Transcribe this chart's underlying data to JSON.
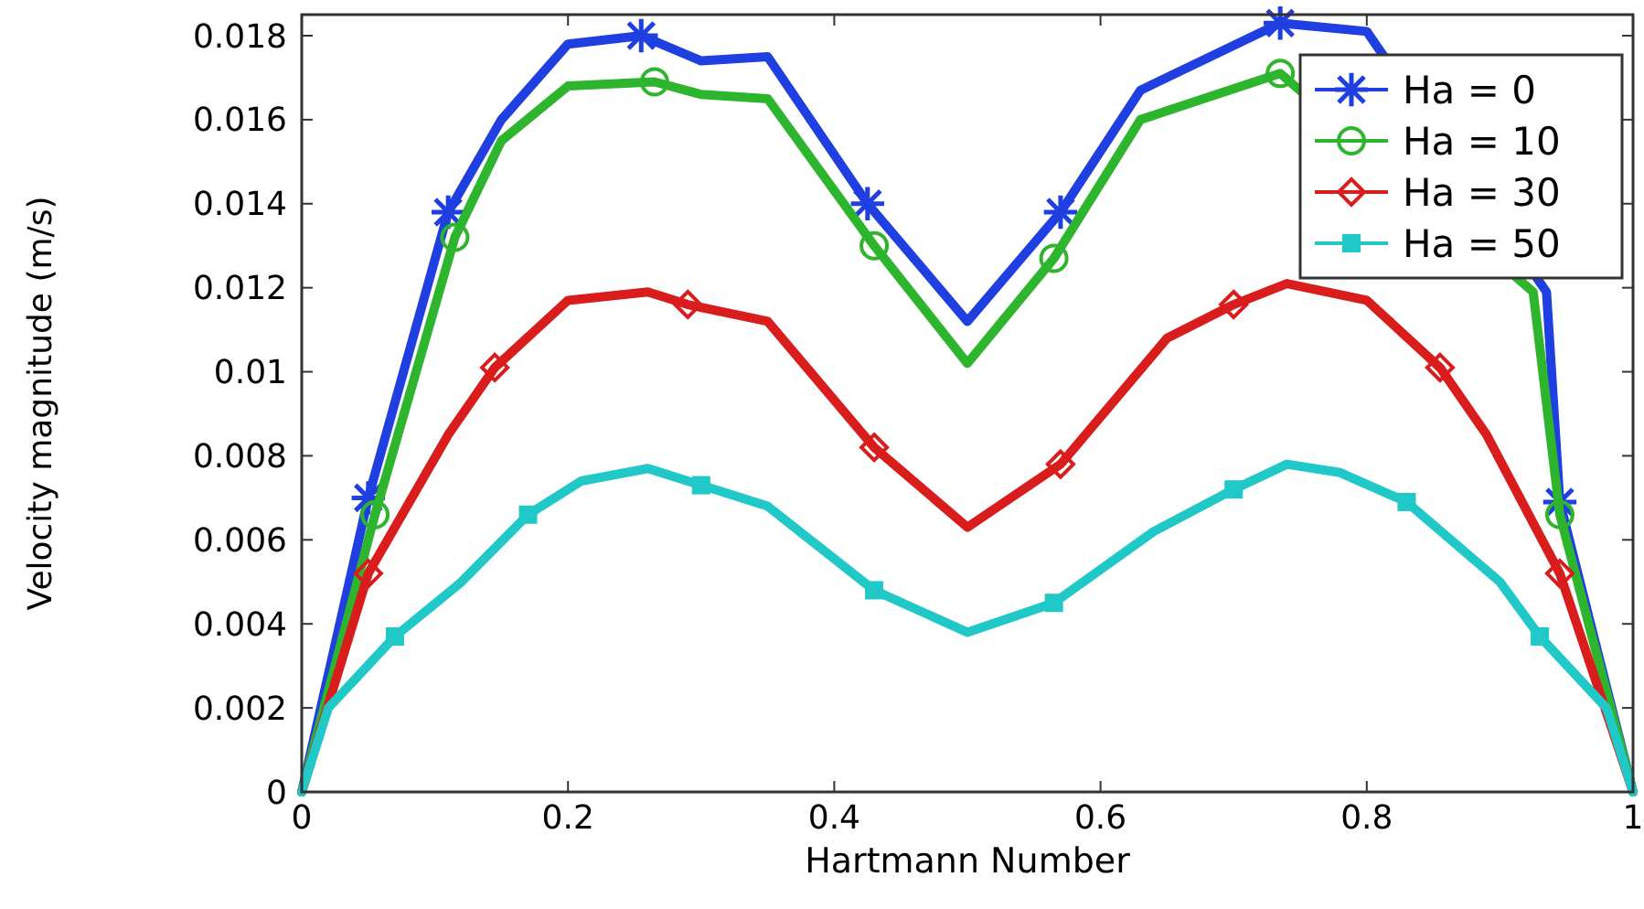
{
  "chart_data": {
    "type": "line",
    "xlabel": "Hartmann Number",
    "ylabel": "Velocity magnitude (m/s)",
    "xlim": [
      0,
      1
    ],
    "ylim": [
      0,
      0.0185
    ],
    "xticks": [
      0,
      0.2,
      0.4,
      0.6,
      0.8,
      1
    ],
    "yticks": [
      0,
      0.002,
      0.004,
      0.006,
      0.008,
      0.01,
      0.012,
      0.014,
      0.016,
      0.018
    ],
    "grid": false,
    "legend": "top right",
    "line_style": "solid",
    "series": [
      {
        "name": "Ha = 0",
        "color": "#1f3fe0",
        "marker": "none",
        "x": [
          0,
          0.05,
          0.11,
          0.15,
          0.2,
          0.255,
          0.3,
          0.35,
          0.425,
          0.5,
          0.57,
          0.63,
          0.735,
          0.8,
          0.935,
          0.945,
          1
        ],
        "values": [
          0,
          0.007,
          0.0138,
          0.016,
          0.0178,
          0.018,
          0.0174,
          0.0175,
          0.014,
          0.0112,
          0.0138,
          0.0167,
          0.0183,
          0.0181,
          0.0119,
          0.0069,
          0
        ]
      },
      {
        "type": "scatter",
        "color": "#1f3fe0",
        "marker": "cross",
        "x": [
          0.05,
          0.11,
          0.255,
          0.425,
          0.57,
          0.735,
          0.945
        ],
        "values": [
          0.007,
          0.0138,
          0.018,
          0.014,
          0.0138,
          0.0183,
          0.0069
        ]
      },
      {
        "name": "Ha = 10",
        "color": "#2db52d",
        "marker": "none",
        "x": [
          0,
          0.055,
          0.115,
          0.15,
          0.2,
          0.265,
          0.3,
          0.35,
          0.43,
          0.5,
          0.565,
          0.63,
          0.735,
          0.925,
          0.945,
          1
        ],
        "values": [
          0,
          0.0066,
          0.0132,
          0.0155,
          0.0168,
          0.0169,
          0.0166,
          0.0165,
          0.013,
          0.0102,
          0.0127,
          0.016,
          0.0171,
          0.0119,
          0.0066,
          0
        ]
      },
      {
        "type": "scatter",
        "color": "#2db52d",
        "marker": "circle",
        "x": [
          0.055,
          0.115,
          0.265,
          0.43,
          0.565,
          0.735,
          0.945
        ],
        "values": [
          0.0066,
          0.0132,
          0.0169,
          0.013,
          0.0127,
          0.0171,
          0.0066
        ]
      },
      {
        "name": "Ha = 30",
        "color": "#d91c1c",
        "marker": "none",
        "x": [
          0,
          0.05,
          0.11,
          0.145,
          0.2,
          0.26,
          0.29,
          0.35,
          0.43,
          0.5,
          0.57,
          0.65,
          0.7,
          0.74,
          0.8,
          0.855,
          0.89,
          0.945,
          1
        ],
        "values": [
          0,
          0.0052,
          0.0085,
          0.0101,
          0.0117,
          0.0119,
          0.0116,
          0.0112,
          0.0082,
          0.0063,
          0.0078,
          0.0108,
          0.0116,
          0.0121,
          0.0117,
          0.0101,
          0.0085,
          0.0052,
          0
        ]
      },
      {
        "type": "scatter",
        "color": "#d91c1c",
        "marker": "diamond",
        "x": [
          0.05,
          0.145,
          0.29,
          0.43,
          0.57,
          0.7,
          0.855,
          0.945
        ],
        "values": [
          0.0052,
          0.0101,
          0.0116,
          0.0082,
          0.0078,
          0.0116,
          0.0101,
          0.0052
        ]
      },
      {
        "name": "Ha = 50",
        "color": "#20c8c8",
        "marker": "none",
        "x": [
          0,
          0.02,
          0.07,
          0.12,
          0.17,
          0.21,
          0.26,
          0.3,
          0.35,
          0.43,
          0.5,
          0.565,
          0.64,
          0.7,
          0.74,
          0.78,
          0.83,
          0.9,
          0.93,
          0.98,
          1
        ],
        "values": [
          0,
          0.002,
          0.0037,
          0.005,
          0.0066,
          0.0074,
          0.0077,
          0.0073,
          0.0068,
          0.0048,
          0.0038,
          0.0045,
          0.0062,
          0.0072,
          0.0078,
          0.0076,
          0.0069,
          0.005,
          0.0037,
          0.002,
          0
        ]
      },
      {
        "type": "scatter",
        "color": "#20c8c8",
        "marker": "square",
        "x": [
          0.07,
          0.17,
          0.3,
          0.43,
          0.565,
          0.7,
          0.83,
          0.93
        ],
        "values": [
          0.0037,
          0.0066,
          0.0073,
          0.0048,
          0.0045,
          0.0072,
          0.0069,
          0.0037
        ]
      }
    ]
  }
}
